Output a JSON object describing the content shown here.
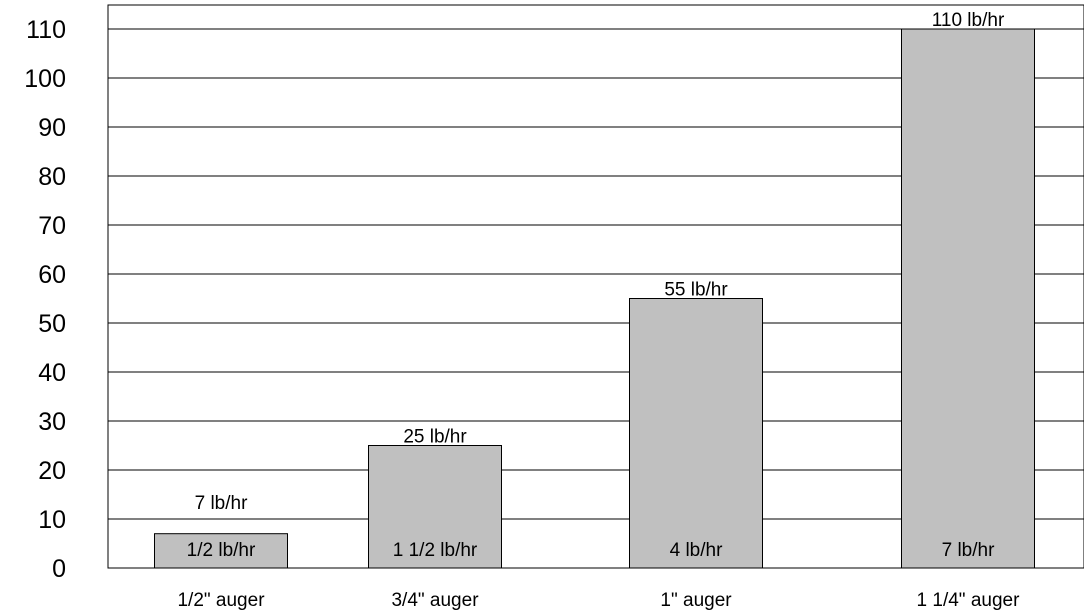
{
  "chart_data": {
    "type": "bar",
    "title": "",
    "xlabel": "",
    "ylabel": "",
    "categories": [
      "1/2\" auger",
      "3/4\" auger",
      "1\" auger",
      "1 1/4\" auger"
    ],
    "values": [
      7,
      25,
      55,
      110
    ],
    "top_labels": [
      "7 lb/hr",
      "25 lb/hr",
      "55 lb/hr",
      "110 lb/hr"
    ],
    "inner_labels": [
      "1/2 lb/hr",
      "1 1/2 lb/hr",
      "4 lb/hr",
      "7 lb/hr"
    ],
    "yticks": [
      "0",
      "10",
      "20",
      "30",
      "40",
      "50",
      "60",
      "70",
      "80",
      "90",
      "100",
      "110"
    ],
    "ylim": [
      0,
      115
    ],
    "grid": true,
    "legend": "none",
    "colors": {
      "bar_fill": "#c0c0c0",
      "bar_stroke": "#000000",
      "grid": "#000000"
    }
  }
}
